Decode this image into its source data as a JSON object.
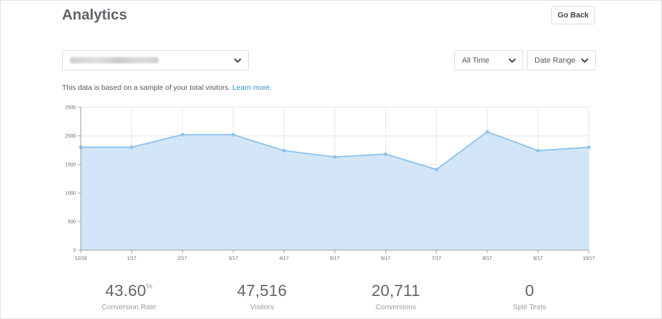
{
  "header": {
    "title": "Analytics",
    "go_back_label": "Go Back"
  },
  "filters": {
    "site_select": {
      "value": ""
    },
    "time_select": {
      "value": "All Time"
    },
    "range_select": {
      "value": "Date Range"
    }
  },
  "note": {
    "text": "This data is based on a sample of your total visitors.",
    "link": "Learn more."
  },
  "colors": {
    "accent": "#2b8bd5",
    "series_line": "#90c4ee",
    "series_fill": "#d3e6f8",
    "grid": "#e6e6e6"
  },
  "chart_data": {
    "type": "area",
    "x": [
      "12/16",
      "1/17",
      "2/17",
      "3/17",
      "4/17",
      "5/17",
      "6/17",
      "7/17",
      "8/17",
      "9/17",
      "10/17"
    ],
    "series": [
      {
        "values": [
          1800,
          1800,
          2020,
          2020,
          1740,
          1630,
          1680,
          1410,
          2070,
          1740,
          1800
        ]
      }
    ],
    "ylim": [
      0,
      2500
    ],
    "yticks": [
      0,
      500,
      1000,
      1500,
      2000,
      2500
    ],
    "grid": true,
    "title": "",
    "xlabel": "",
    "ylabel": ""
  },
  "stats": [
    {
      "value": "43.60",
      "suffix": "%",
      "label": "Conversion Rate"
    },
    {
      "value": "47,516",
      "suffix": "",
      "label": "Visitors"
    },
    {
      "value": "20,711",
      "suffix": "",
      "label": "Conversions"
    },
    {
      "value": "0",
      "suffix": "",
      "label": "Split Tests"
    }
  ]
}
